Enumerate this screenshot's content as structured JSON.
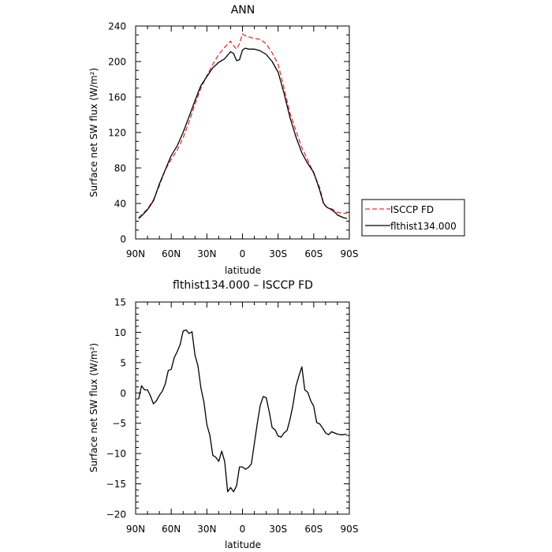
{
  "chart_data": [
    {
      "type": "line",
      "title": "ANN",
      "xlabel": "latitude",
      "ylabel": "Surface net SW flux (W/m²)",
      "xlim": [
        90,
        -90
      ],
      "ylim": [
        0,
        240
      ],
      "x_ticks": [
        90,
        60,
        30,
        0,
        -30,
        -60,
        -90
      ],
      "x_tick_labels": [
        "90N",
        "60N",
        "30N",
        "0",
        "30S",
        "60S",
        "90S"
      ],
      "y_ticks": [
        0,
        40,
        80,
        120,
        160,
        200,
        240
      ],
      "y_tick_labels": [
        "0",
        "40",
        "80",
        "120",
        "160",
        "200",
        "240"
      ],
      "grid": false,
      "legend_position": "outside-right",
      "x": [
        87.5,
        85,
        80,
        75,
        70,
        65,
        60,
        55,
        50,
        45,
        40,
        35,
        30,
        25,
        20,
        15,
        12,
        10,
        7.5,
        5,
        2.5,
        0,
        -2.5,
        -5,
        -10,
        -15,
        -20,
        -25,
        -30,
        -35,
        -40,
        -45,
        -50,
        -55,
        -60,
        -65,
        -68,
        -70,
        -72,
        -75,
        -78,
        -80,
        -85,
        -88
      ],
      "series": [
        {
          "name": "ISCCP FD",
          "color": "#e83030",
          "dash": "dashed",
          "values": [
            24,
            27,
            34,
            44,
            60,
            78,
            90,
            100,
            114,
            132,
            152,
            170,
            184,
            197,
            208,
            216,
            220,
            223,
            218,
            214,
            220,
            231,
            229,
            228,
            226,
            225,
            220,
            210,
            197,
            170,
            142,
            122,
            103,
            89,
            74,
            58,
            42,
            37,
            35,
            34,
            32,
            30,
            29,
            29
          ]
        },
        {
          "name": "flthist134.000",
          "color": "#000000",
          "dash": "solid",
          "values": [
            23,
            26,
            33,
            43,
            62,
            78,
            94,
            105,
            120,
            138,
            156,
            173,
            183,
            193,
            199,
            203,
            208,
            211,
            209,
            201,
            202,
            213,
            215,
            214,
            214,
            212,
            208,
            200,
            188,
            164,
            137,
            115,
            97,
            85,
            75,
            55,
            41,
            37,
            35,
            33,
            30,
            27,
            24,
            23
          ]
        }
      ]
    },
    {
      "type": "line",
      "title": "flthist134.000 – ISCCP FD",
      "xlabel": "latitude",
      "ylabel": "Surface net SW flux (W/m²)",
      "xlim": [
        90,
        -90
      ],
      "ylim": [
        -20,
        15
      ],
      "x_ticks": [
        90,
        60,
        30,
        0,
        -30,
        -60,
        -90
      ],
      "x_tick_labels": [
        "90N",
        "60N",
        "30N",
        "0",
        "30S",
        "60S",
        "90S"
      ],
      "y_ticks": [
        -20,
        -15,
        -10,
        -5,
        0,
        5,
        10,
        15
      ],
      "y_tick_labels": [
        "−20",
        "−15",
        "−10",
        "−5",
        "0",
        "5",
        "10",
        "15"
      ],
      "grid": false,
      "x": [
        87.5,
        85,
        82.5,
        80,
        77.5,
        75,
        72.5,
        70,
        67.5,
        65,
        62.5,
        60,
        57.5,
        55,
        52.5,
        50,
        47.5,
        45,
        42.5,
        40,
        37.5,
        35,
        32.5,
        30,
        27.5,
        25,
        22.5,
        20,
        17.5,
        15,
        12.5,
        10,
        7.5,
        5,
        2.5,
        0,
        -2.5,
        -5,
        -7.5,
        -10,
        -12.5,
        -15,
        -17.5,
        -20,
        -22.5,
        -25,
        -27.5,
        -30,
        -32.5,
        -35,
        -37.5,
        -40,
        -42.5,
        -45,
        -47.5,
        -50,
        -52.5,
        -55,
        -57.5,
        -60,
        -62.5,
        -65,
        -67.5,
        -70,
        -72.5,
        -75,
        -77.5,
        -80,
        -82.5,
        -85,
        -87.5
      ],
      "series": [
        {
          "name": "",
          "color": "#000000",
          "dash": "solid",
          "values": [
            -1.0,
            1.2,
            0.5,
            0.5,
            -0.5,
            -1.8,
            -1.3,
            -0.4,
            0.3,
            1.5,
            3.7,
            3.9,
            5.8,
            6.8,
            8.0,
            10.2,
            10.4,
            9.8,
            10.1,
            6.2,
            4.5,
            0.8,
            -1.5,
            -5.2,
            -7.0,
            -10.3,
            -10.6,
            -11.3,
            -9.6,
            -11.3,
            -16.3,
            -15.6,
            -16.3,
            -15.3,
            -12.2,
            -12.2,
            -12.6,
            -12.3,
            -11.7,
            -8.3,
            -5.0,
            -2.0,
            -0.6,
            -0.8,
            -3.1,
            -5.7,
            -6.1,
            -7.1,
            -7.3,
            -6.6,
            -6.2,
            -4.4,
            -2.0,
            1.1,
            2.8,
            4.3,
            0.5,
            0.1,
            -1.3,
            -2.2,
            -4.9,
            -5.1,
            -5.8,
            -6.6,
            -6.9,
            -6.4,
            -6.6,
            -6.8,
            -6.9,
            -6.9,
            -6.8
          ]
        }
      ]
    }
  ]
}
